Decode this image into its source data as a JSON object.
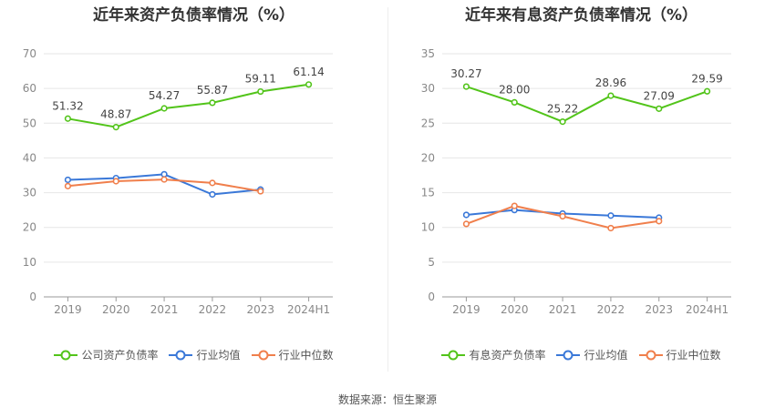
{
  "source_text": "数据来源：恒生聚源",
  "chart_data": [
    {
      "type": "line",
      "title": "近年来资产负债率情况（%）",
      "categories": [
        "2019",
        "2020",
        "2021",
        "2022",
        "2023",
        "2024H1"
      ],
      "ylim": [
        0,
        70
      ],
      "yticks": [
        0,
        10,
        20,
        30,
        40,
        50,
        60,
        70
      ],
      "grid": true,
      "legend_position": "bottom",
      "series": [
        {
          "name": "公司资产负债率",
          "color": "#52c41a",
          "values": [
            51.32,
            48.87,
            54.27,
            55.87,
            59.11,
            61.14
          ],
          "labels": [
            "51.32",
            "48.87",
            "54.27",
            "55.87",
            "59.11",
            "61.14"
          ]
        },
        {
          "name": "行业均值",
          "color": "#3a78d8",
          "values": [
            33.7,
            34.2,
            35.3,
            29.5,
            30.9,
            null
          ]
        },
        {
          "name": "行业中位数",
          "color": "#f07f4c",
          "values": [
            31.9,
            33.3,
            33.8,
            32.8,
            30.4,
            null
          ]
        }
      ]
    },
    {
      "type": "line",
      "title": "近年来有息资产负债率情况（%）",
      "categories": [
        "2019",
        "2020",
        "2021",
        "2022",
        "2023",
        "2024H1"
      ],
      "ylim": [
        0,
        35
      ],
      "yticks": [
        0,
        5,
        10,
        15,
        20,
        25,
        30,
        35
      ],
      "grid": true,
      "legend_position": "bottom",
      "series": [
        {
          "name": "有息资产负债率",
          "color": "#52c41a",
          "values": [
            30.27,
            28.0,
            25.22,
            28.96,
            27.09,
            29.59
          ],
          "labels": [
            "30.27",
            "28.00",
            "25.22",
            "28.96",
            "27.09",
            "29.59"
          ]
        },
        {
          "name": "行业均值",
          "color": "#3a78d8",
          "values": [
            11.8,
            12.5,
            12.0,
            11.7,
            11.4,
            null
          ]
        },
        {
          "name": "行业中位数",
          "color": "#f07f4c",
          "values": [
            10.5,
            13.1,
            11.6,
            9.9,
            10.9,
            null
          ]
        }
      ]
    }
  ]
}
